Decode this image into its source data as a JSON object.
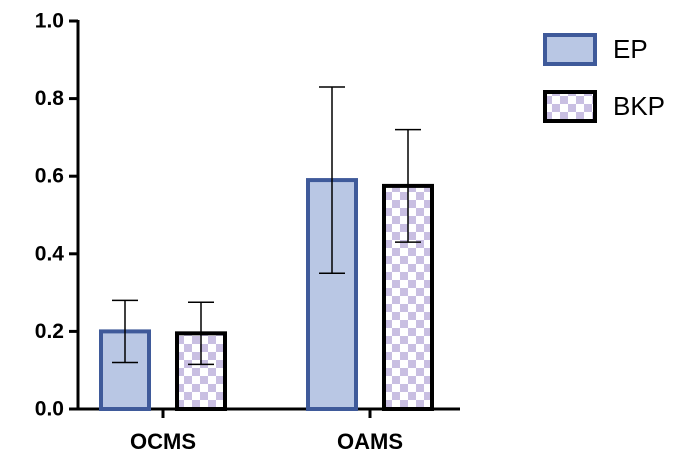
{
  "chart_data": {
    "type": "bar",
    "categories": [
      "OCMS",
      "OAMS"
    ],
    "series": [
      {
        "name": "EP",
        "color": "#b9c7e4",
        "edgecolor": "#3f5a9a",
        "values": [
          0.2,
          0.59
        ],
        "errors": [
          0.08,
          0.24
        ]
      },
      {
        "name": "BKP",
        "color": "#c9bfe2",
        "edgecolor": "#000000",
        "hatch": "checker",
        "values": [
          0.195,
          0.575
        ],
        "errors": [
          0.08,
          0.145
        ]
      }
    ],
    "ylim": [
      0,
      1.0
    ],
    "yticks": [
      {
        "value": 0,
        "label": "0.0"
      },
      0.2,
      0.4,
      0.6,
      0.8,
      {
        "value": 1.0,
        "label": "1.0"
      }
    ],
    "legend": "upper right"
  }
}
